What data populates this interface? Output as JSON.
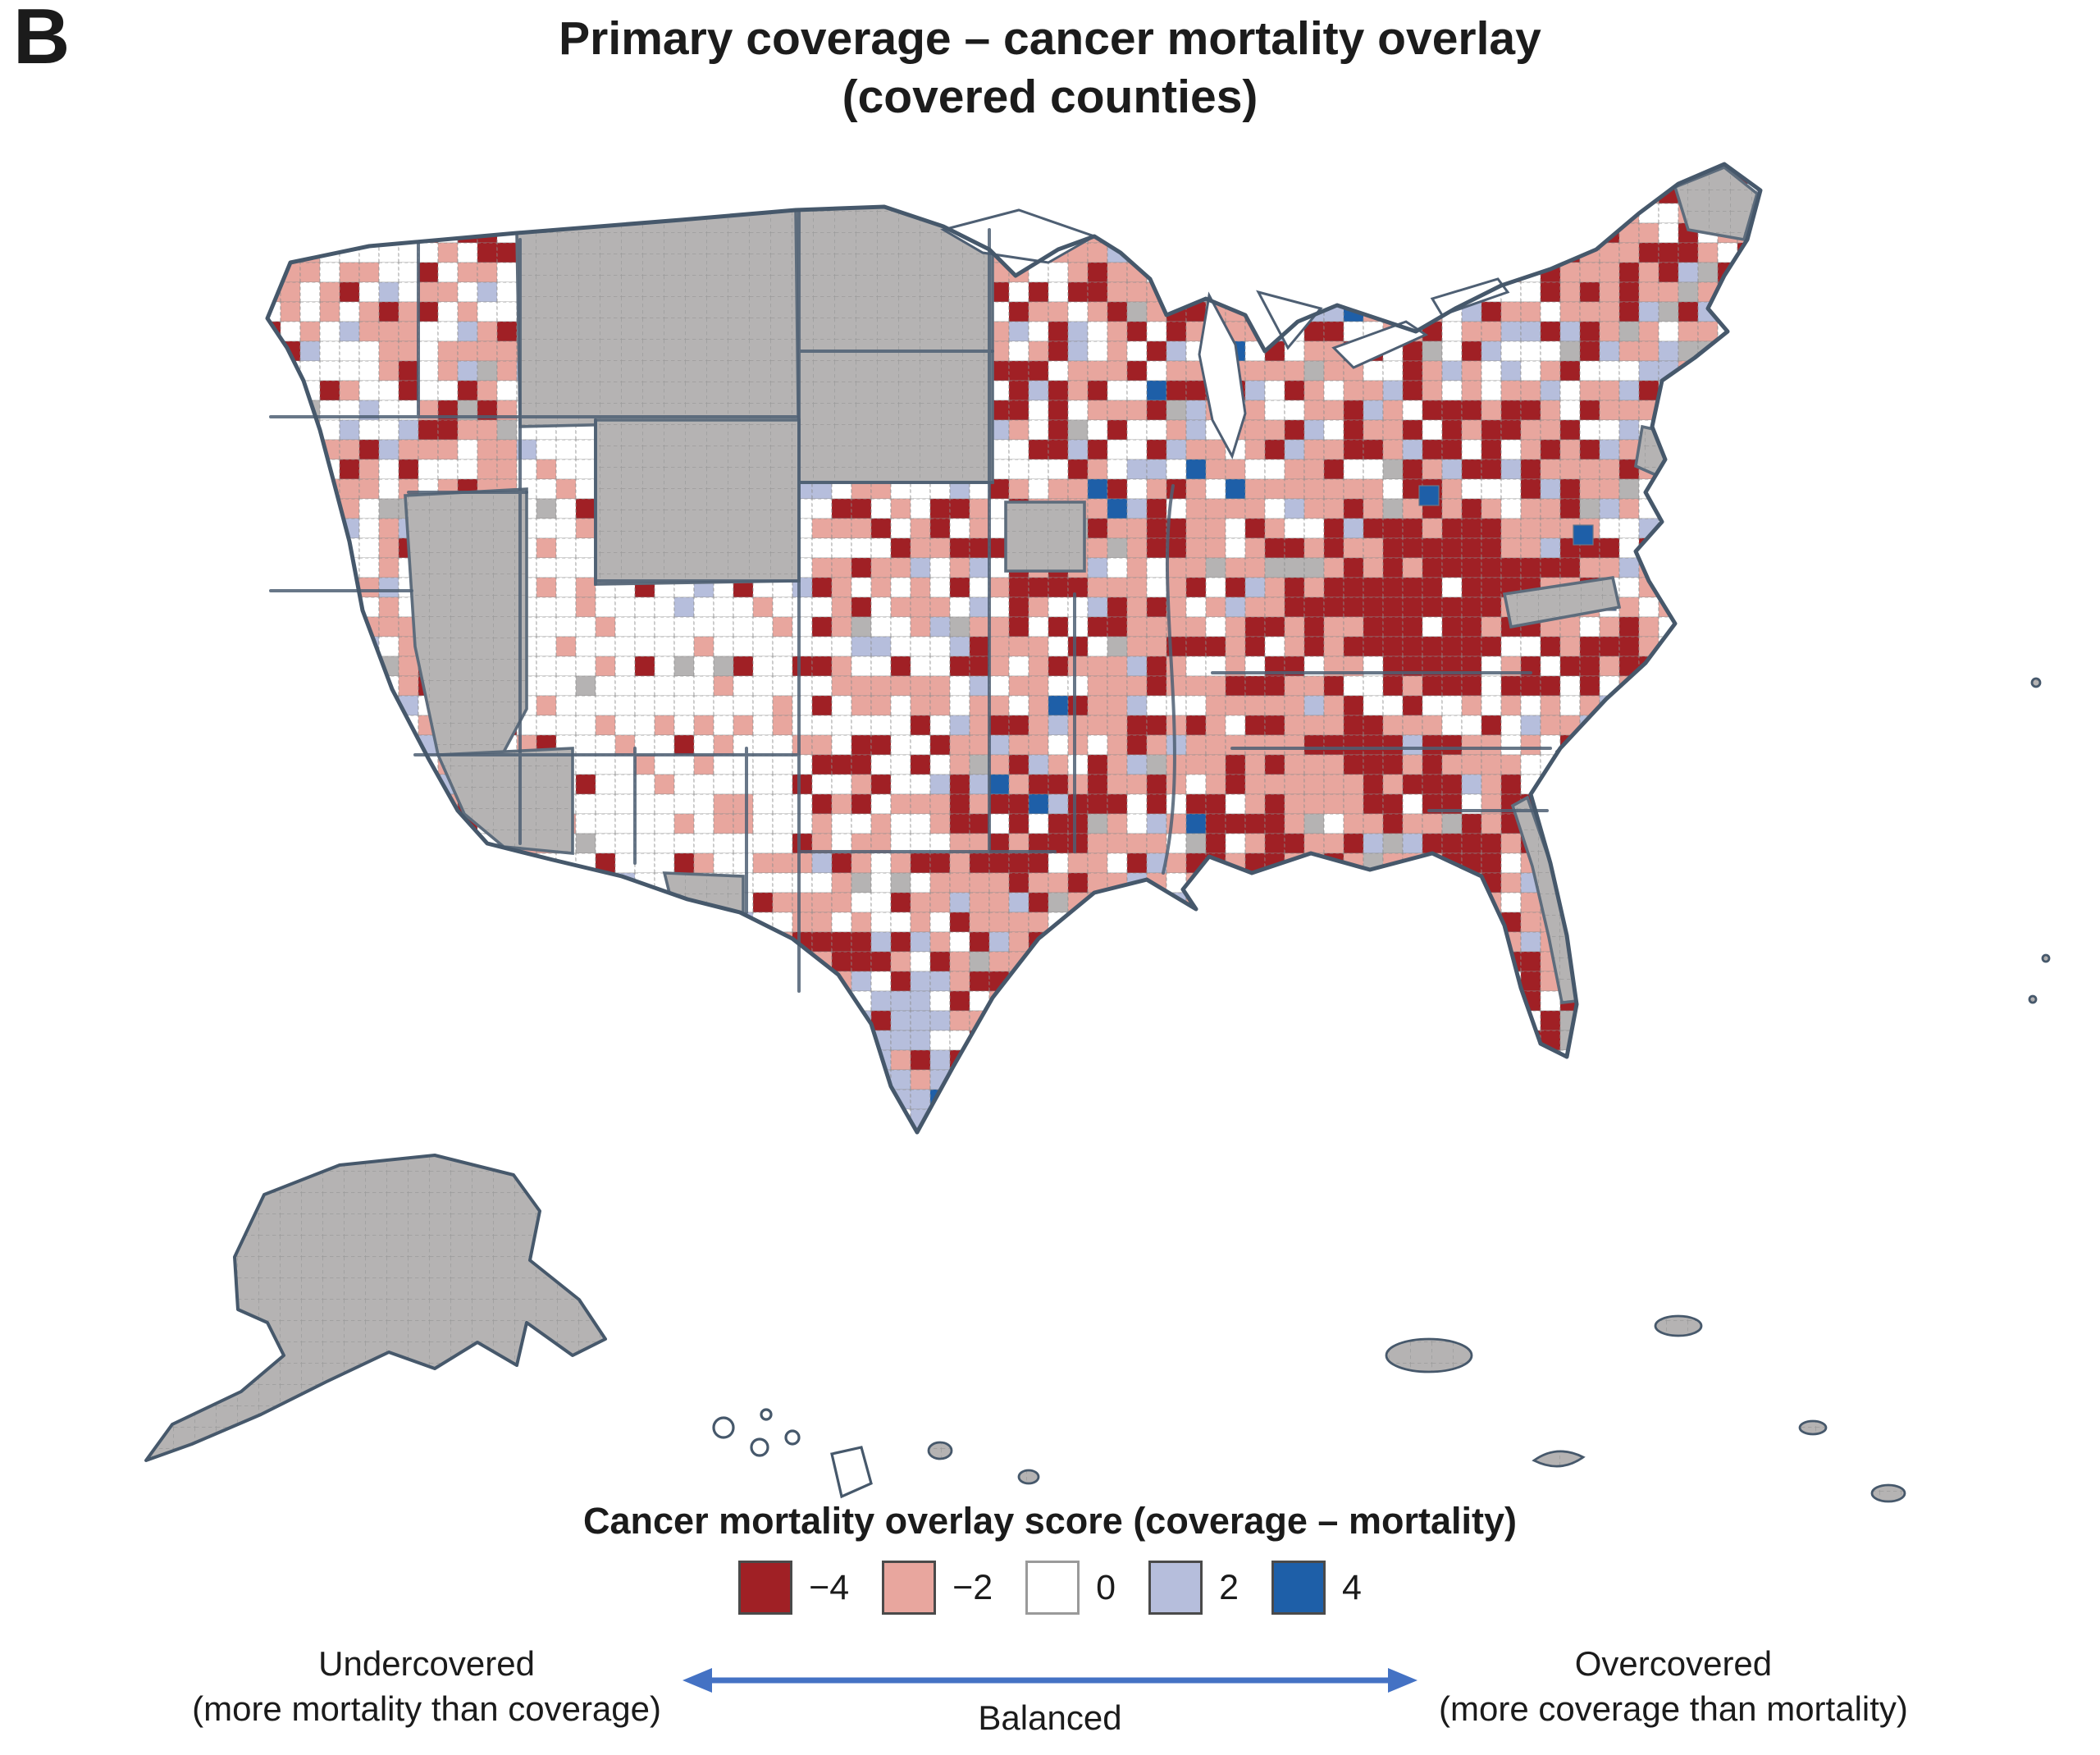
{
  "panel_label": "B",
  "title": {
    "line1": "Primary coverage – cancer mortality overlay",
    "line2": "(covered counties)"
  },
  "legend": {
    "title": "Cancer mortality overlay score (coverage – mortality)",
    "entries": [
      {
        "label": "−4",
        "color": "#A02025"
      },
      {
        "label": "−2",
        "color": "#E8A69E"
      },
      {
        "label": "0",
        "color": "#FFFFFF"
      },
      {
        "label": "2",
        "color": "#B6BEDC"
      },
      {
        "label": "4",
        "color": "#1E5FA8"
      }
    ],
    "axis": {
      "left_label_line1": "Undercovered",
      "left_label_line2": "(more mortality than coverage)",
      "center_label": "Balanced",
      "right_label_line1": "Overcovered",
      "right_label_line2": "(more coverage than mortality)",
      "arrow_color": "#4472C4"
    }
  },
  "chart_data": {
    "type": "heatmap",
    "subtype": "us_county_choropleth",
    "title": "Primary coverage – cancer mortality overlay (covered counties)",
    "value_label": "Cancer mortality overlay score (coverage – mortality)",
    "scale": {
      "ticks": [
        -4,
        -2,
        0,
        2,
        4
      ],
      "tick_labels": [
        "−4",
        "−2",
        "0",
        "2",
        "4"
      ],
      "colors": [
        "#A02025",
        "#E8A69E",
        "#FFFFFF",
        "#B6BEDC",
        "#1E5FA8"
      ],
      "min_meaning": "Undercovered (more mortality than coverage)",
      "mid_meaning": "Balanced",
      "max_meaning": "Overcovered (more coverage than mortality)"
    },
    "uncovered_color": "#B5B3B3",
    "uncovered_regions_visible": [
      "Montana",
      "Wyoming",
      "North Dakota",
      "South Dakota",
      "Nevada",
      "most of Arizona",
      "Alaska",
      "Florida Atlantic coast strip",
      "New Jersey",
      "northern Maine",
      "central Virginia strip",
      "scattered counties"
    ],
    "pattern_notes": {
      "predominant": "negative (red) scores across the Midwest, South and Appalachia",
      "darkest_cluster": "eastern Kentucky / West Virginia Appalachian region",
      "positive_clusters": "scattered blue and lavender counties in south Texas, California and the Mid-Atlantic",
      "neutral_region": "Mountain West counties mostly near 0 (white)"
    },
    "insets": [
      "Alaska",
      "Hawaii",
      "Puerto Rico and other islands"
    ]
  }
}
